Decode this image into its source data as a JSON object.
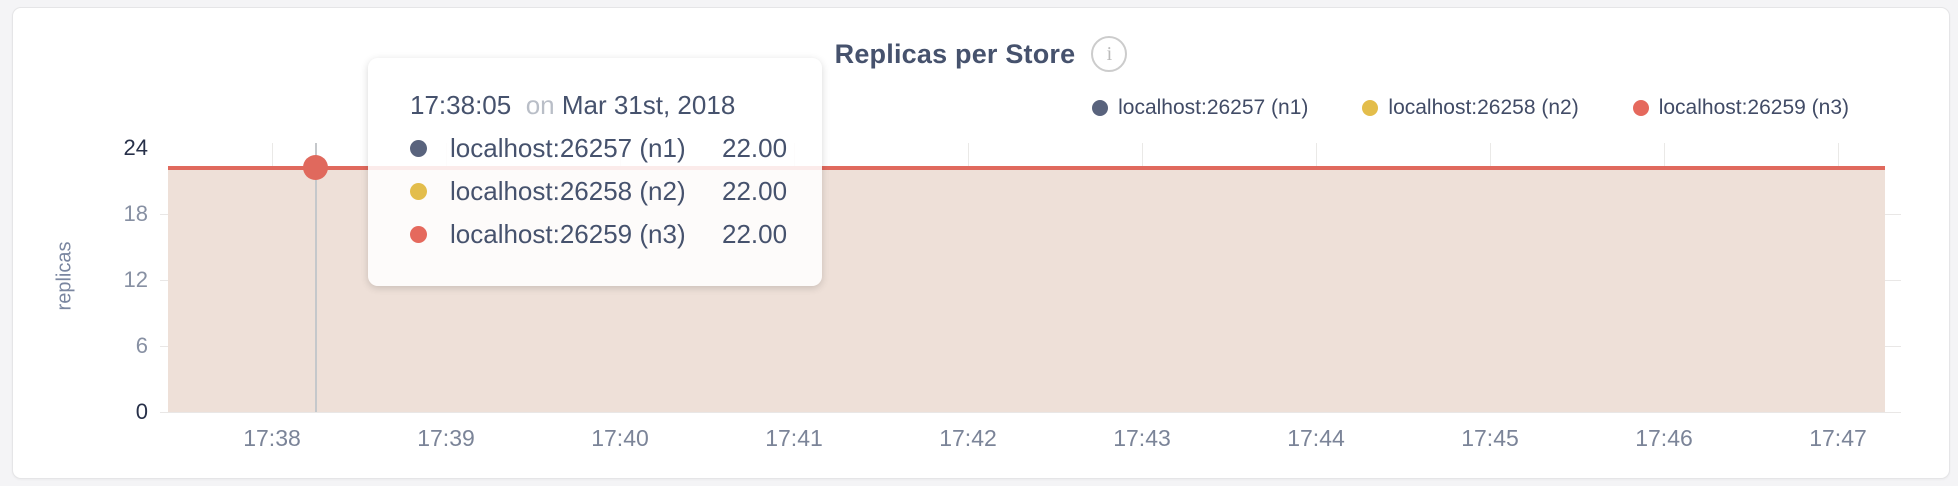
{
  "header": {
    "title": "Replicas per Store",
    "info_icon_glyph": "i"
  },
  "legend": {
    "items": [
      {
        "label": "localhost:26257 (n1)",
        "color": "#59637d"
      },
      {
        "label": "localhost:26258 (n2)",
        "color": "#e3bd4b"
      },
      {
        "label": "localhost:26259 (n3)",
        "color": "#e5695d"
      }
    ]
  },
  "tooltip": {
    "time": "17:38:05",
    "preposition": "on",
    "date": "Mar 31st, 2018",
    "rows": [
      {
        "series": "localhost:26257 (n1)",
        "value": "22.00",
        "color": "#59637d"
      },
      {
        "series": "localhost:26258 (n2)",
        "value": "22.00",
        "color": "#e3bd4b"
      },
      {
        "series": "localhost:26259 (n3)",
        "value": "22.00",
        "color": "#e5695d"
      }
    ]
  },
  "chart_data": {
    "type": "area",
    "title": "Replicas per Store",
    "xlabel": "",
    "ylabel": "replicas",
    "x": [
      "17:38",
      "17:39",
      "17:40",
      "17:41",
      "17:42",
      "17:43",
      "17:44",
      "17:45",
      "17:46",
      "17:47"
    ],
    "y_ticks": [
      0,
      6,
      12,
      18,
      24
    ],
    "ylim": [
      0,
      24
    ],
    "series": [
      {
        "name": "localhost:26257 (n1)",
        "color": "#59637d",
        "values": [
          22,
          22,
          22,
          22,
          22,
          22,
          22,
          22,
          22,
          22
        ]
      },
      {
        "name": "localhost:26258 (n2)",
        "color": "#e3bd4b",
        "values": [
          22,
          22,
          22,
          22,
          22,
          22,
          22,
          22,
          22,
          22
        ]
      },
      {
        "name": "localhost:26259 (n3)",
        "color": "#e5695d",
        "values": [
          22,
          22,
          22,
          22,
          22,
          22,
          22,
          22,
          22,
          22
        ]
      }
    ],
    "hover_point": {
      "time": "17:38:05",
      "value": 22
    },
    "area_fill_color": "#eee0d8",
    "line_color": "#e0695d",
    "grid": true,
    "legend_position": "top-right"
  }
}
